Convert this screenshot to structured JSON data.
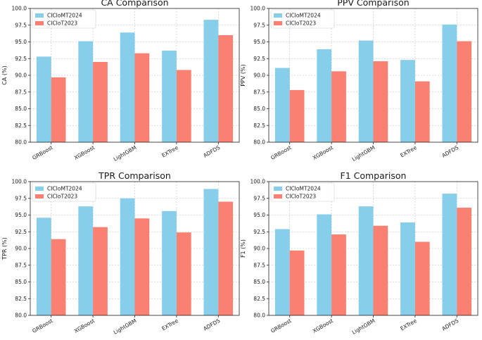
{
  "colors": {
    "CICIoMT2024": "#87ceeb",
    "CICIoT2023": "#fa8072"
  },
  "chart_data": [
    {
      "type": "bar",
      "title": "CA Comparison",
      "xlabel": "",
      "ylabel": "CA (%)",
      "ylim": [
        80,
        100
      ],
      "yticks": [
        "80.0",
        "82.5",
        "85.0",
        "87.5",
        "90.0",
        "92.5",
        "95.0",
        "97.5",
        "100.0"
      ],
      "categories": [
        "GRBoost",
        "XGBoost",
        "LightGBM",
        "EXTree",
        "ADFDS"
      ],
      "series": [
        {
          "name": "CICIoMT2024",
          "values": [
            92.8,
            95.1,
            96.4,
            93.7,
            98.3
          ]
        },
        {
          "name": "CICIoT2023",
          "values": [
            89.7,
            92.0,
            93.3,
            90.8,
            96.0
          ]
        }
      ],
      "legend": "top-left",
      "grid": true
    },
    {
      "type": "bar",
      "title": "PPV Comparison",
      "xlabel": "",
      "ylabel": "PPV (%)",
      "ylim": [
        80,
        100
      ],
      "yticks": [
        "80.0",
        "82.5",
        "85.0",
        "87.5",
        "90.0",
        "92.5",
        "95.0",
        "97.5",
        "100.0"
      ],
      "categories": [
        "GRBoost",
        "XGBoost",
        "LightGBM",
        "EXTree",
        "ADFDS"
      ],
      "series": [
        {
          "name": "CICIoMT2024",
          "values": [
            91.1,
            93.9,
            95.2,
            92.3,
            97.6
          ]
        },
        {
          "name": "CICIoT2023",
          "values": [
            87.8,
            90.6,
            92.1,
            89.1,
            95.1
          ]
        }
      ],
      "legend": "top-left",
      "grid": true
    },
    {
      "type": "bar",
      "title": "TPR Comparison",
      "xlabel": "",
      "ylabel": "TPR (%)",
      "ylim": [
        80,
        100
      ],
      "yticks": [
        "80.0",
        "82.5",
        "85.0",
        "87.5",
        "90.0",
        "92.5",
        "95.0",
        "97.5",
        "100.0"
      ],
      "categories": [
        "GRBoost",
        "XGBoost",
        "LightGBM",
        "EXTree",
        "ADFDS"
      ],
      "series": [
        {
          "name": "CICIoMT2024",
          "values": [
            94.6,
            96.3,
            97.5,
            95.6,
            98.9
          ]
        },
        {
          "name": "CICIoT2023",
          "values": [
            91.4,
            93.2,
            94.5,
            92.4,
            97.0
          ]
        }
      ],
      "legend": "top-left",
      "grid": true
    },
    {
      "type": "bar",
      "title": "F1 Comparison",
      "xlabel": "",
      "ylabel": "F1 (%)",
      "ylim": [
        80,
        100
      ],
      "yticks": [
        "80.0",
        "82.5",
        "85.0",
        "87.5",
        "90.0",
        "92.5",
        "95.0",
        "97.5",
        "100.0"
      ],
      "categories": [
        "GRBoost",
        "XGBoost",
        "LightGBM",
        "EXTree",
        "ADFDS"
      ],
      "series": [
        {
          "name": "CICIoMT2024",
          "values": [
            92.9,
            95.1,
            96.3,
            93.9,
            98.2
          ]
        },
        {
          "name": "CICIoT2023",
          "values": [
            89.7,
            92.1,
            93.4,
            91.0,
            96.1
          ]
        }
      ],
      "legend": "top-left",
      "grid": true
    }
  ]
}
